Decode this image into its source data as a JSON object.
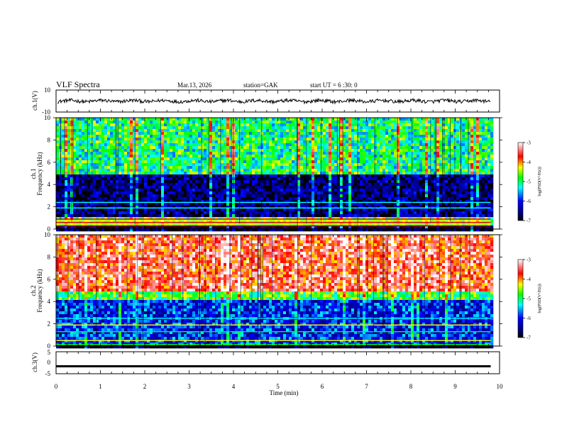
{
  "header": {
    "title": "VLF Spectra",
    "date": "Mar.13, 2026",
    "station": "station=GAK",
    "start_ut": "start UT = 6 :30: 0"
  },
  "chart_data": [
    {
      "type": "line",
      "name": "ch1-waveform",
      "ylabel": "ch.1(V)",
      "ylim": [
        -10,
        10
      ],
      "yticks": [
        "10",
        "-10"
      ],
      "baseline": 0,
      "xlim": [
        0,
        10
      ],
      "data_end_min": 9.8
    },
    {
      "type": "heatmap",
      "name": "ch1-spectrogram",
      "ylabel_line1": "ch.1",
      "ylabel_line2": "Frequency (kHz)",
      "ylim": [
        0,
        10
      ],
      "yticks": [
        "0",
        "2",
        "4",
        "6",
        "8",
        "10"
      ],
      "xlim": [
        0,
        10
      ],
      "data_end_min": 9.8,
      "colorbar": {
        "label": "log(PSD(V²/Hz))",
        "range": [
          -7,
          -3
        ],
        "ticks": [
          "-3",
          "-4",
          "-5",
          "-6",
          "-7"
        ]
      },
      "bands": [
        {
          "f_lo": 0.3,
          "f_hi": 1.0,
          "level": -4.8,
          "desc": "low-frequency green/yellow lines"
        },
        {
          "f_lo": 1.0,
          "f_hi": 4.8,
          "level": -6.6,
          "desc": "quiet dark blue band"
        },
        {
          "f_lo": 4.8,
          "f_hi": 10.0,
          "level": -5.0,
          "desc": "green/cyan background with red/yellow bursts"
        }
      ]
    },
    {
      "type": "heatmap",
      "name": "ch2-spectrogram",
      "ylabel_line1": "ch.2",
      "ylabel_line2": "Frequency (kHz)",
      "ylim": [
        0,
        10
      ],
      "yticks": [
        "0",
        "2",
        "4",
        "6",
        "8",
        "10"
      ],
      "xlim": [
        0,
        10
      ],
      "data_end_min": 9.8,
      "colorbar": {
        "label": "log(PSD(V²/Hz))",
        "range": [
          -7,
          -3
        ],
        "ticks": [
          "-3",
          "-4",
          "-5",
          "-6",
          "-7"
        ]
      },
      "bands": [
        {
          "f_lo": 0.0,
          "f_hi": 4.2,
          "level": -6.0,
          "desc": "blue/cyan noise band"
        },
        {
          "f_lo": 4.2,
          "f_hi": 5.0,
          "level": -4.8,
          "desc": "green/yellow transition"
        },
        {
          "f_lo": 5.0,
          "f_hi": 10.0,
          "level": -3.6,
          "desc": "red hiss dominated"
        }
      ]
    },
    {
      "type": "line",
      "name": "ch3-waveform",
      "ylabel": "ch.3(V)",
      "ylim": [
        -5,
        5
      ],
      "yticks": [
        "5",
        "0",
        "-5"
      ],
      "baseline": -1.6,
      "xlim": [
        0,
        10
      ],
      "data_end_min": 9.8
    }
  ],
  "xaxis": {
    "label": "Time (min)",
    "ticks": [
      "0",
      "1",
      "2",
      "3",
      "4",
      "5",
      "6",
      "7",
      "8",
      "9",
      "10"
    ]
  },
  "colors": {
    "colormap": [
      "#00007f",
      "#0000ff",
      "#00ffff",
      "#00ff00",
      "#ffff00",
      "#ff0000",
      "#ffffff"
    ]
  }
}
